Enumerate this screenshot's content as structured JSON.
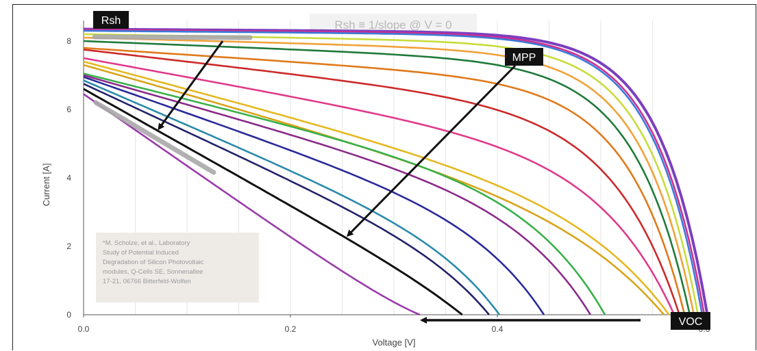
{
  "chart_data": {
    "type": "line",
    "title": "",
    "xlabel": "Voltage [V]",
    "ylabel": "Current [A]",
    "xlim": [
      0,
      0.6
    ],
    "ylim": [
      0,
      8.6
    ],
    "x_ticks": [
      0,
      0.2,
      0.4,
      0.6
    ],
    "x_tick_labels": [
      "0.0",
      "0.2",
      "0.4",
      "0.6"
    ],
    "y_ticks": [
      0,
      2,
      4,
      6,
      8
    ],
    "y_tick_labels": [
      "0",
      "2",
      "4",
      "6",
      "8"
    ],
    "grid": "vertical-minor",
    "legend": "none",
    "series": [
      {
        "color": "#7b3fbf",
        "isc": 8.35,
        "voc": 0.603,
        "k": 13.0,
        "r": 0.2
      },
      {
        "color": "#cf2e8f",
        "isc": 8.33,
        "voc": 0.6,
        "k": 12.5,
        "r": 0.22
      },
      {
        "color": "#3a7ad8",
        "isc": 8.3,
        "voc": 0.598,
        "k": 12.5,
        "r": 0.25
      },
      {
        "color": "#c8dc3c",
        "isc": 8.2,
        "voc": 0.594,
        "k": 12.0,
        "r": 0.5
      },
      {
        "color": "#f0a23a",
        "isc": 8.1,
        "voc": 0.59,
        "k": 11.5,
        "r": 0.8
      },
      {
        "color": "#1f7a3a",
        "isc": 8.0,
        "voc": 0.586,
        "k": 11.0,
        "r": 1.2
      },
      {
        "color": "#e07a1a",
        "isc": 7.8,
        "voc": 0.581,
        "k": 10.5,
        "r": 2.0
      },
      {
        "color": "#cc2a2a",
        "isc": 7.75,
        "voc": 0.576,
        "k": 9.0,
        "r": 3.5
      },
      {
        "color": "#e03a8a",
        "isc": 7.5,
        "voc": 0.571,
        "k": 8.0,
        "r": 5.5
      },
      {
        "color": "#e5b820",
        "isc": 7.4,
        "voc": 0.566,
        "k": 6.5,
        "r": 8.0
      },
      {
        "color": "#d8a418",
        "isc": 7.3,
        "voc": 0.561,
        "k": 6.0,
        "r": 8.5
      },
      {
        "color": "#3ab04a",
        "isc": 7.05,
        "voc": 0.504,
        "k": 7.0,
        "r": 7.5
      },
      {
        "color": "#8a2a8a",
        "isc": 7.0,
        "voc": 0.49,
        "k": 7.0,
        "r": 8.5
      },
      {
        "color": "#2a2a9a",
        "isc": 6.95,
        "voc": 0.445,
        "k": 7.0,
        "r": 10.5
      },
      {
        "color": "#2a8aaa",
        "isc": 6.85,
        "voc": 0.402,
        "k": 7.0,
        "r": 13.0
      },
      {
        "color": "#22226a",
        "isc": 6.75,
        "voc": 0.392,
        "k": 7.0,
        "r": 14.0
      },
      {
        "color": "#111111",
        "isc": 6.6,
        "voc": 0.366,
        "k": 7.0,
        "r": 17.0
      },
      {
        "color": "#9a3aaa",
        "isc": 6.45,
        "voc": 0.325,
        "k": 7.0,
        "r": 21.0
      }
    ]
  },
  "labels": {
    "rsh_tag": "Rsh",
    "mpp_tag": "MPP",
    "voc_tag": "VOC",
    "formula": "Rsh ≡ 1/slope @ V = 0",
    "reference_lines": [
      "*M. Scholze, et al., Laboratory",
      "Study of Potential Induced",
      "Degradation of Silicon Photovoltaic",
      "modules, Q-Cells SE, Sonnenallee",
      "17-21, 06766 Bitterfeld-Wolfen"
    ]
  },
  "colors": {
    "tag_background": "#111111",
    "arrow": "#111111",
    "highlight": "#a9a9a9",
    "reference_box": "#eeebe7",
    "formula_box": "#f2f2f2"
  }
}
